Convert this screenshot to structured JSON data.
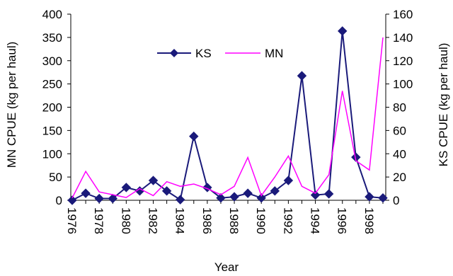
{
  "chart_data": {
    "type": "line",
    "x": [
      1976,
      1977,
      1978,
      1979,
      1980,
      1981,
      1982,
      1983,
      1984,
      1985,
      1986,
      1987,
      1988,
      1989,
      1990,
      1991,
      1992,
      1993,
      1994,
      1995,
      1996,
      1997,
      1998,
      1999
    ],
    "xlabel": "Year",
    "xticks": [
      "1976",
      "1978",
      "1980",
      "1982",
      "1984",
      "1986",
      "1988",
      "1990",
      "1992",
      "1994",
      "1996",
      "1998"
    ],
    "y_left": {
      "label": "MN CPUE (kg per haul)",
      "lim": [
        0,
        400
      ],
      "ticks": [
        0,
        50,
        100,
        150,
        200,
        250,
        300,
        350,
        400
      ]
    },
    "y_right": {
      "label": "KS CPUE (kg per haul)",
      "lim": [
        0,
        160
      ],
      "ticks": [
        0,
        20,
        40,
        60,
        80,
        100,
        120,
        140,
        160
      ]
    },
    "legend_position": "top-center",
    "series": [
      {
        "name": "KS",
        "axis": "right",
        "color": "#1a1a7a",
        "marker": "diamond",
        "values": [
          0,
          6,
          1.5,
          1.5,
          11,
          8,
          17,
          8,
          0.5,
          55,
          11,
          2,
          3,
          6,
          2,
          8,
          17,
          107,
          4.5,
          5.5,
          145.5,
          37,
          3,
          2
        ]
      },
      {
        "name": "MN",
        "axis": "left",
        "color": "#ff00ff",
        "marker": "none",
        "values": [
          5,
          62,
          18,
          12,
          6,
          25,
          10,
          40,
          30,
          35,
          25,
          12,
          30,
          92,
          10,
          50,
          95,
          30,
          15,
          55,
          235,
          85,
          65,
          350
        ]
      }
    ]
  }
}
